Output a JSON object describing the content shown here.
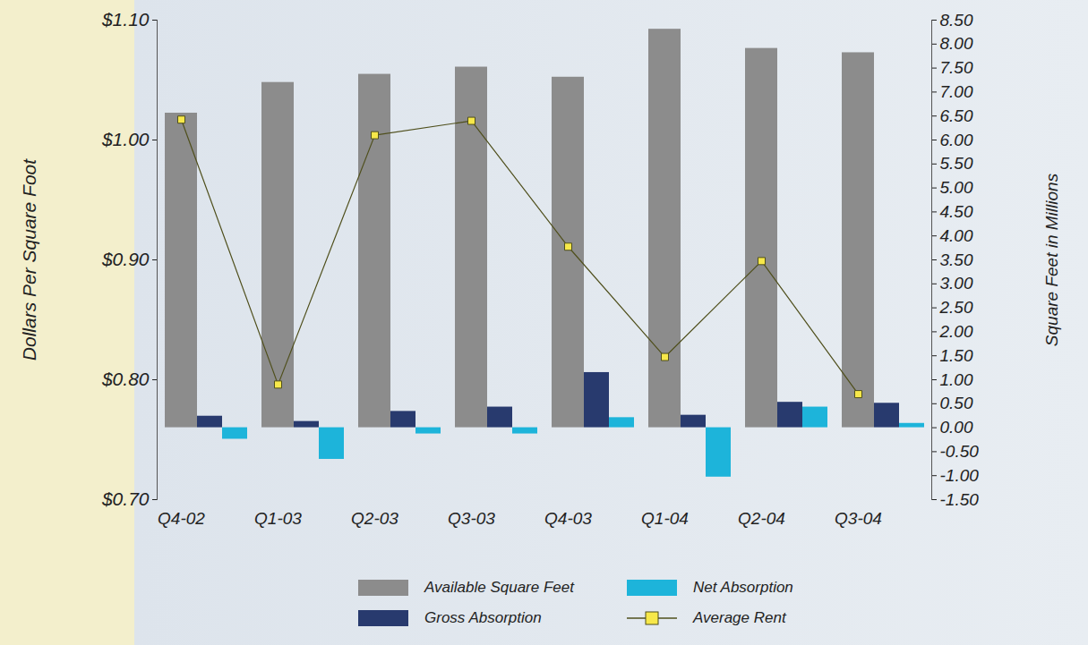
{
  "chart_data": {
    "type": "bar",
    "y_label": "Dollars Per Square Foot",
    "y2_label": "Square Feet in Millions",
    "categories": [
      "Q4-02",
      "Q1-03",
      "Q2-03",
      "Q3-03",
      "Q4-03",
      "Q1-04",
      "Q2-04",
      "Q3-04"
    ],
    "series": [
      {
        "name": "Available Square Feet",
        "type": "bar",
        "axis": "y2",
        "color": "#8c8c8c",
        "values": [
          6.56,
          7.2,
          7.37,
          7.52,
          7.31,
          8.31,
          7.91,
          7.82
        ]
      },
      {
        "name": "Gross Absorption",
        "type": "bar",
        "axis": "y2",
        "color": "#283a6e",
        "values": [
          0.24,
          0.13,
          0.34,
          0.43,
          1.15,
          0.26,
          0.53,
          0.51
        ]
      },
      {
        "name": "Net Absorption",
        "type": "bar",
        "axis": "y2",
        "color": "#1db4da",
        "values": [
          -0.24,
          -0.66,
          -0.13,
          -0.13,
          0.21,
          -1.03,
          0.43,
          0.09
        ]
      },
      {
        "name": "Average Rent",
        "type": "line",
        "color": "#4f4f1c",
        "marker": "square",
        "values": [
          1.017,
          0.796,
          1.004,
          1.016,
          0.911,
          0.819,
          0.899,
          0.788
        ]
      }
    ],
    "ylim": [
      0.7,
      1.1
    ],
    "yticks": [
      {
        "value": 0.7,
        "label": "$0.70"
      },
      {
        "value": 0.8,
        "label": "$0.80"
      },
      {
        "value": 0.9,
        "label": "$0.90"
      },
      {
        "value": 1.0,
        "label": "$1.00"
      },
      {
        "value": 1.1,
        "label": "$1.10"
      }
    ],
    "y2lim": [
      -1.5,
      8.5
    ],
    "y2ticks": [
      {
        "value": -1.5,
        "label": "-1.50"
      },
      {
        "value": -1,
        "label": "-1.00"
      },
      {
        "value": -0.5,
        "label": "-0.50"
      },
      {
        "value": 0,
        "label": "0.00"
      },
      {
        "value": 0.5,
        "label": "0.50"
      },
      {
        "value": 1,
        "label": "1.00"
      },
      {
        "value": 1.5,
        "label": "1.50"
      },
      {
        "value": 2,
        "label": "2.00"
      },
      {
        "value": 2.5,
        "label": "2.50"
      },
      {
        "value": 3,
        "label": "3.00"
      },
      {
        "value": 3.5,
        "label": "3.50"
      },
      {
        "value": 4,
        "label": "4.00"
      },
      {
        "value": 4.5,
        "label": "4.50"
      },
      {
        "value": 5,
        "label": "5.00"
      },
      {
        "value": 5.5,
        "label": "5.50"
      },
      {
        "value": 6,
        "label": "6.00"
      },
      {
        "value": 6.5,
        "label": "6.50"
      },
      {
        "value": 7,
        "label": "7.00"
      },
      {
        "value": 7.5,
        "label": "7.50"
      },
      {
        "value": 8,
        "label": "8.00"
      },
      {
        "value": 8.5,
        "label": "8.50"
      }
    ],
    "legend": "bottom"
  }
}
